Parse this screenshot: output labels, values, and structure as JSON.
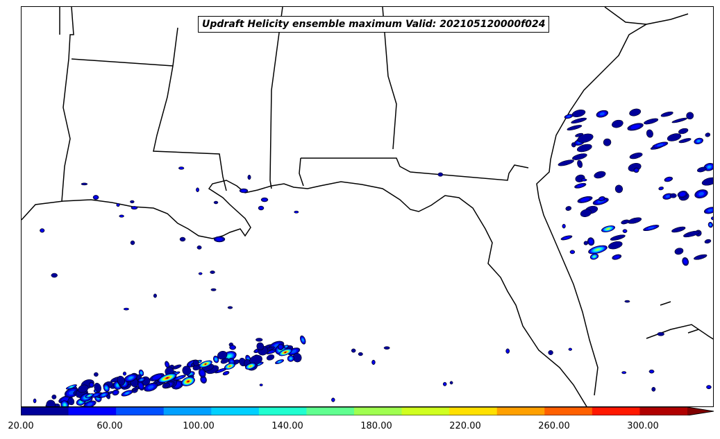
{
  "map": {
    "title": "Updraft Helicity ensemble maximum Valid: 202105120000f024",
    "field": "Updraft Helicity ensemble maximum",
    "region": "US Gulf Coast / Florida",
    "land_color": "#ffffff",
    "water_color": "#ffffff",
    "boundary_color": "#000000"
  },
  "colorbar": {
    "tick_labels": [
      "20.00",
      "60.00",
      "100.00",
      "140.00",
      "180.00",
      "220.00",
      "260.00",
      "300.00"
    ],
    "min": 20,
    "max": 300,
    "step": 20,
    "extend": "max",
    "colors": [
      "#00009a",
      "#0000ff",
      "#0050ff",
      "#00a0ff",
      "#00d0ff",
      "#20ffd0",
      "#60ff90",
      "#a0ff50",
      "#d0ff20",
      "#ffe000",
      "#ffa000",
      "#ff6000",
      "#ff1800",
      "#b00000"
    ],
    "extend_color": "#800000"
  }
}
